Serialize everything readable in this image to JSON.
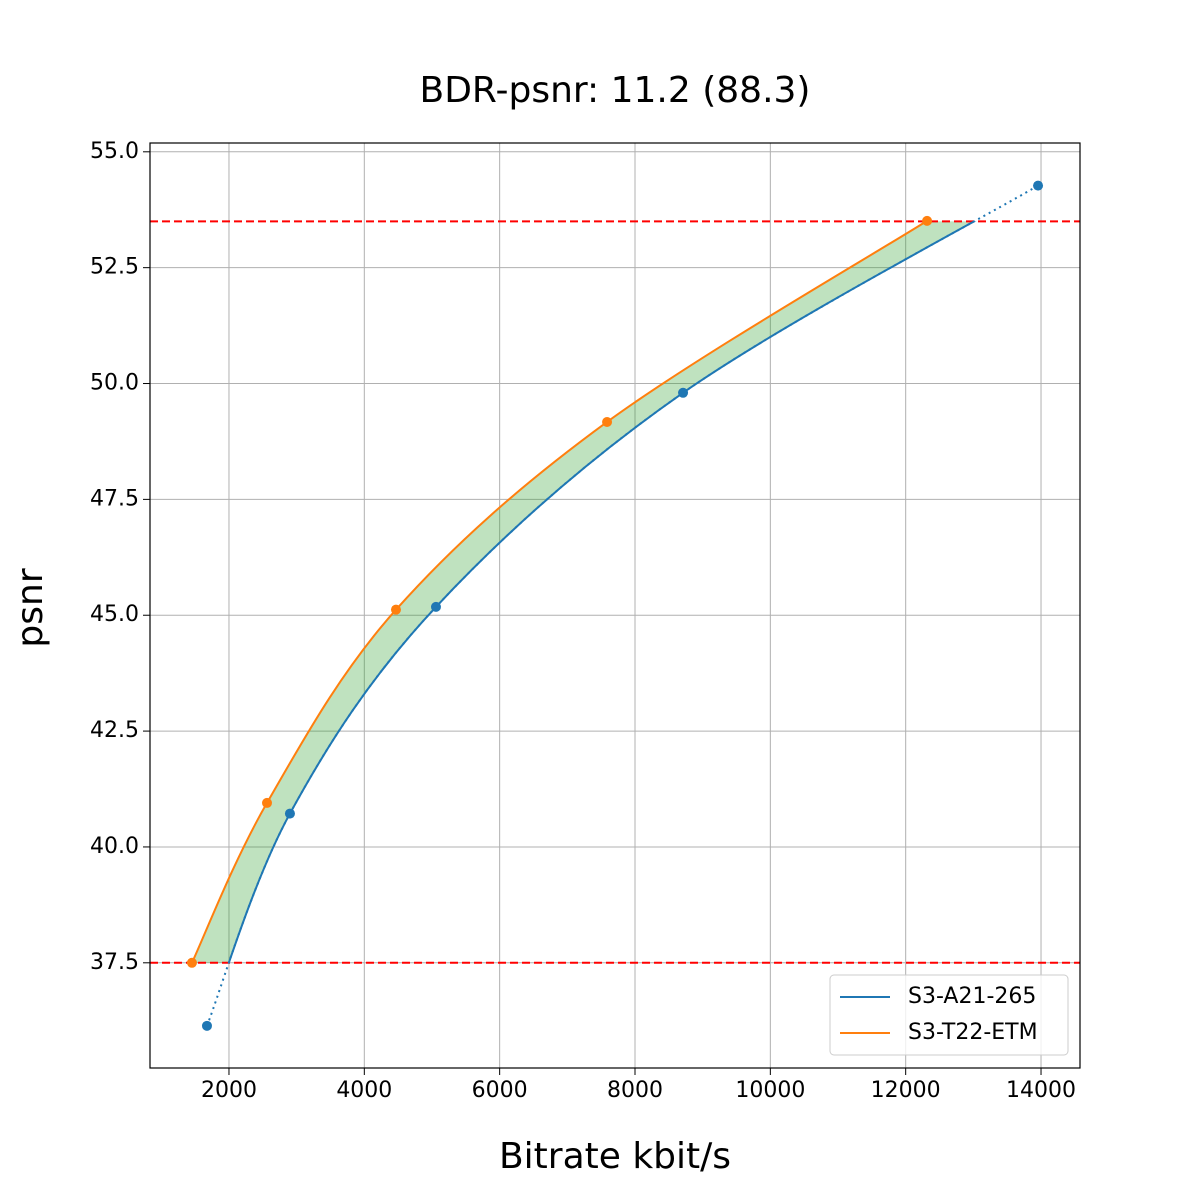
{
  "chart_data": {
    "type": "line",
    "title": "BDR-psnr: 11.2 (88.3)",
    "x_label": "Bitrate kbit/s",
    "y_label": "psnr",
    "series": [
      {
        "name": "S3-A21-265",
        "color": "#1f77b4",
        "x": [
          1675,
          2901,
          5059,
          8710,
          13956
        ],
        "values": [
          36.14,
          40.72,
          45.18,
          49.8,
          54.27
        ]
      },
      {
        "name": "S3-T22-ETM",
        "color": "#ff7f0e",
        "x": [
          1453,
          2562,
          4468,
          7587,
          12316
        ],
        "values": [
          37.5,
          40.95,
          45.12,
          49.17,
          53.51
        ]
      }
    ],
    "thresholds": [
      37.5,
      53.5
    ],
    "threshold_color": "#ff0000",
    "fill_color": "#2ca02c",
    "xlim": [
      833,
      14576
    ],
    "ylim": [
      35.23,
      55.19
    ],
    "xticks": [
      2000,
      4000,
      6000,
      8000,
      10000,
      12000,
      14000
    ],
    "yticks": [
      {
        "value": 37.5,
        "label": "37.5"
      },
      {
        "value": 40,
        "label": "40.0"
      },
      {
        "value": 42.5,
        "label": "42.5"
      },
      {
        "value": 45,
        "label": "45.0"
      },
      {
        "value": 47.5,
        "label": "47.5"
      },
      {
        "value": 50,
        "label": "50.0"
      },
      {
        "value": 52.5,
        "label": "52.5"
      },
      {
        "value": 55,
        "label": "55.0"
      }
    ],
    "grid": true,
    "legend": "lower right"
  }
}
